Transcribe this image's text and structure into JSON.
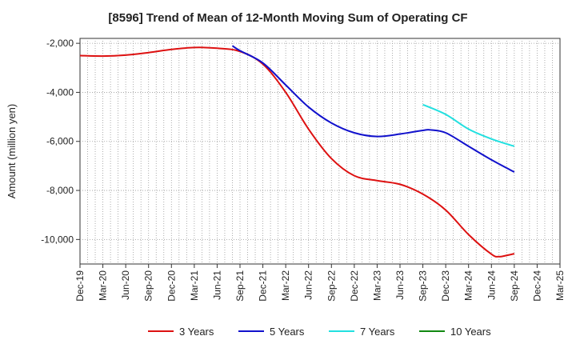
{
  "chart_data": {
    "type": "line",
    "title": "[8596]  Trend of Mean of 12-Month Moving Sum of Operating CF",
    "xlabel": "",
    "ylabel": "Amount (million yen)",
    "ylim": [
      -11000,
      -1800
    ],
    "yticks": [
      -2000,
      -4000,
      -6000,
      -8000,
      -10000
    ],
    "ytick_labels": [
      "-2,000",
      "-4,000",
      "-6,000",
      "-8,000",
      "-10,000"
    ],
    "x_start": "2019-12",
    "x_end": "2025-03",
    "x_tick_labels": [
      "Dec-19",
      "Mar-20",
      "Jun-20",
      "Sep-20",
      "Dec-20",
      "Mar-21",
      "Jun-21",
      "Sep-21",
      "Dec-21",
      "Mar-22",
      "Jun-22",
      "Sep-22",
      "Dec-22",
      "Mar-23",
      "Jun-23",
      "Sep-23",
      "Dec-23",
      "Mar-24",
      "Jun-24",
      "Sep-24",
      "Dec-24",
      "Mar-25"
    ],
    "x_tick_month_index": [
      0,
      3,
      6,
      9,
      12,
      15,
      18,
      21,
      24,
      27,
      30,
      33,
      36,
      39,
      42,
      45,
      48,
      51,
      54,
      57,
      60,
      63
    ],
    "grid": true,
    "legend_position": "bottom",
    "series": [
      {
        "name": "3 Years",
        "color": "#dd1111",
        "points": [
          [
            0,
            -2500
          ],
          [
            3,
            -2520
          ],
          [
            6,
            -2480
          ],
          [
            9,
            -2380
          ],
          [
            12,
            -2250
          ],
          [
            15,
            -2170
          ],
          [
            18,
            -2200
          ],
          [
            21,
            -2330
          ],
          [
            24,
            -2850
          ],
          [
            27,
            -4000
          ],
          [
            30,
            -5500
          ],
          [
            33,
            -6700
          ],
          [
            36,
            -7400
          ],
          [
            39,
            -7600
          ],
          [
            42,
            -7750
          ],
          [
            45,
            -8150
          ],
          [
            48,
            -8800
          ],
          [
            51,
            -9800
          ],
          [
            54,
            -10600
          ],
          [
            55,
            -10700
          ],
          [
            56,
            -10650
          ],
          [
            57,
            -10580
          ]
        ]
      },
      {
        "name": "5 Years",
        "color": "#1111cc",
        "points": [
          [
            20,
            -2100
          ],
          [
            21,
            -2300
          ],
          [
            24,
            -2800
          ],
          [
            27,
            -3700
          ],
          [
            30,
            -4600
          ],
          [
            33,
            -5250
          ],
          [
            36,
            -5650
          ],
          [
            39,
            -5800
          ],
          [
            42,
            -5700
          ],
          [
            45,
            -5550
          ],
          [
            46,
            -5530
          ],
          [
            48,
            -5650
          ],
          [
            51,
            -6200
          ],
          [
            54,
            -6750
          ],
          [
            57,
            -7250
          ]
        ]
      },
      {
        "name": "7 Years",
        "color": "#22e0e0",
        "points": [
          [
            45,
            -4500
          ],
          [
            48,
            -4900
          ],
          [
            51,
            -5500
          ],
          [
            54,
            -5900
          ],
          [
            57,
            -6200
          ]
        ]
      },
      {
        "name": "10 Years",
        "color": "#118811",
        "points": []
      }
    ]
  }
}
